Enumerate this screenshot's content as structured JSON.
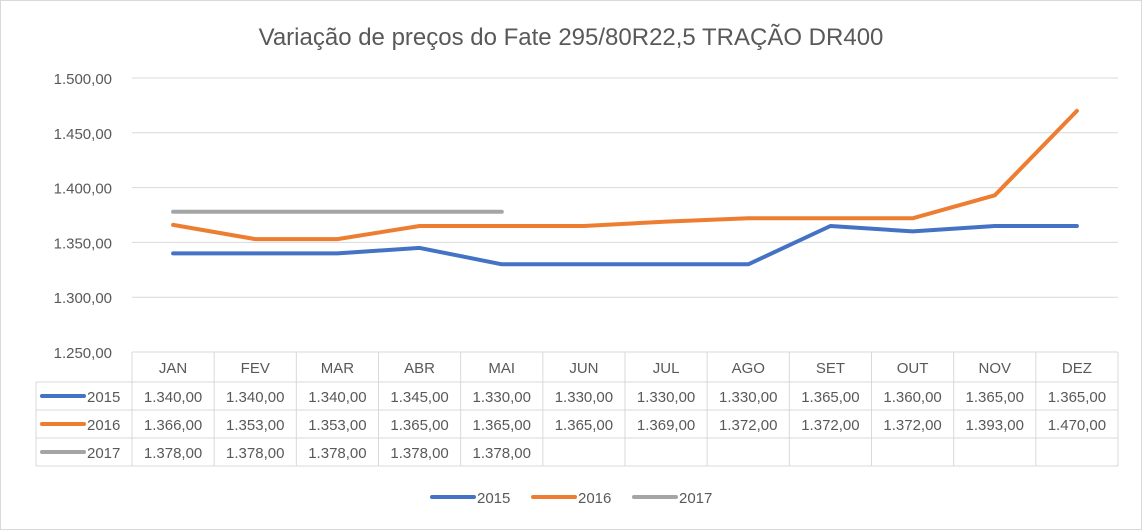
{
  "chart_data": {
    "type": "line",
    "title": "Variação de preços do Fate 295/80R22,5 TRAÇÃO DR400",
    "categories": [
      "JAN",
      "FEV",
      "MAR",
      "ABR",
      "MAI",
      "JUN",
      "JUL",
      "AGO",
      "SET",
      "OUT",
      "NOV",
      "DEZ"
    ],
    "ylim": [
      1250,
      1500
    ],
    "yticks": [
      1250,
      1300,
      1350,
      1400,
      1450,
      1500
    ],
    "ytick_labels": [
      "1.250,00",
      "1.300,00",
      "1.350,00",
      "1.400,00",
      "1.450,00",
      "1.500,00"
    ],
    "grid": true,
    "legend_position": "bottom",
    "data_table": true,
    "series": [
      {
        "name": "2015",
        "color": "#4472c4",
        "values": [
          1340,
          1340,
          1340,
          1345,
          1330,
          1330,
          1330,
          1330,
          1365,
          1360,
          1365,
          1365
        ],
        "labels": [
          "1.340,00",
          "1.340,00",
          "1.340,00",
          "1.345,00",
          "1.330,00",
          "1.330,00",
          "1.330,00",
          "1.330,00",
          "1.365,00",
          "1.360,00",
          "1.365,00",
          "1.365,00"
        ]
      },
      {
        "name": "2016",
        "color": "#ed7d31",
        "values": [
          1366,
          1353,
          1353,
          1365,
          1365,
          1365,
          1369,
          1372,
          1372,
          1372,
          1393,
          1470
        ],
        "labels": [
          "1.366,00",
          "1.353,00",
          "1.353,00",
          "1.365,00",
          "1.365,00",
          "1.365,00",
          "1.369,00",
          "1.372,00",
          "1.372,00",
          "1.372,00",
          "1.393,00",
          "1.470,00"
        ]
      },
      {
        "name": "2017",
        "color": "#a5a5a5",
        "values": [
          1378,
          1378,
          1378,
          1378,
          1378,
          null,
          null,
          null,
          null,
          null,
          null,
          null
        ],
        "labels": [
          "1.378,00",
          "1.378,00",
          "1.378,00",
          "1.378,00",
          "1.378,00",
          "",
          "",
          "",
          "",
          "",
          "",
          ""
        ]
      }
    ]
  }
}
